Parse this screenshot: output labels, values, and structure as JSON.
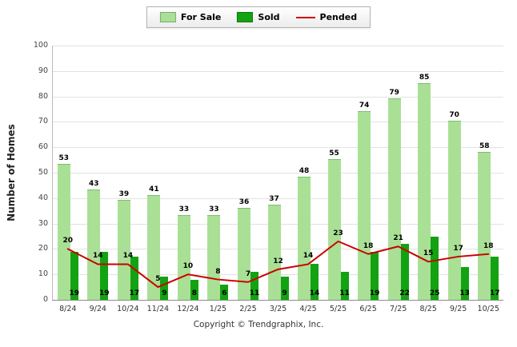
{
  "legend": {
    "for_sale": "For Sale",
    "sold": "Sold",
    "pended": "Pended"
  },
  "footer": {
    "copyright": "Copyright © Trendgraphix, Inc."
  },
  "colors": {
    "for_sale": "#A9E096",
    "sold": "#12A212",
    "pended": "#CC0000",
    "grid": "#e2e2e2"
  },
  "chart_data": {
    "type": "bar",
    "subtype": "grouped bars with line overlay",
    "categories": [
      "8/24",
      "9/24",
      "10/24",
      "11/24",
      "12/24",
      "1/25",
      "2/25",
      "3/25",
      "4/25",
      "5/25",
      "6/25",
      "7/25",
      "8/25",
      "9/25",
      "10/25"
    ],
    "series": [
      {
        "name": "For Sale",
        "type": "bar",
        "color": "#A9E096",
        "values": [
          53,
          43,
          39,
          41,
          33,
          33,
          36,
          37,
          48,
          55,
          74,
          79,
          85,
          70,
          58
        ]
      },
      {
        "name": "Sold",
        "type": "bar",
        "color": "#12A212",
        "values": [
          19,
          19,
          17,
          9,
          8,
          6,
          11,
          9,
          14,
          11,
          19,
          22,
          25,
          13,
          17
        ]
      },
      {
        "name": "Pended",
        "type": "line",
        "color": "#CC0000",
        "values": [
          20,
          14,
          14,
          5,
          10,
          8,
          7,
          12,
          14,
          23,
          18,
          21,
          15,
          17,
          18
        ]
      }
    ],
    "title": "",
    "xlabel": "",
    "ylabel": "Number of Homes",
    "ylim": [
      0,
      100
    ],
    "ytick_step": 10,
    "grid": true,
    "legend_position": "top-center"
  }
}
